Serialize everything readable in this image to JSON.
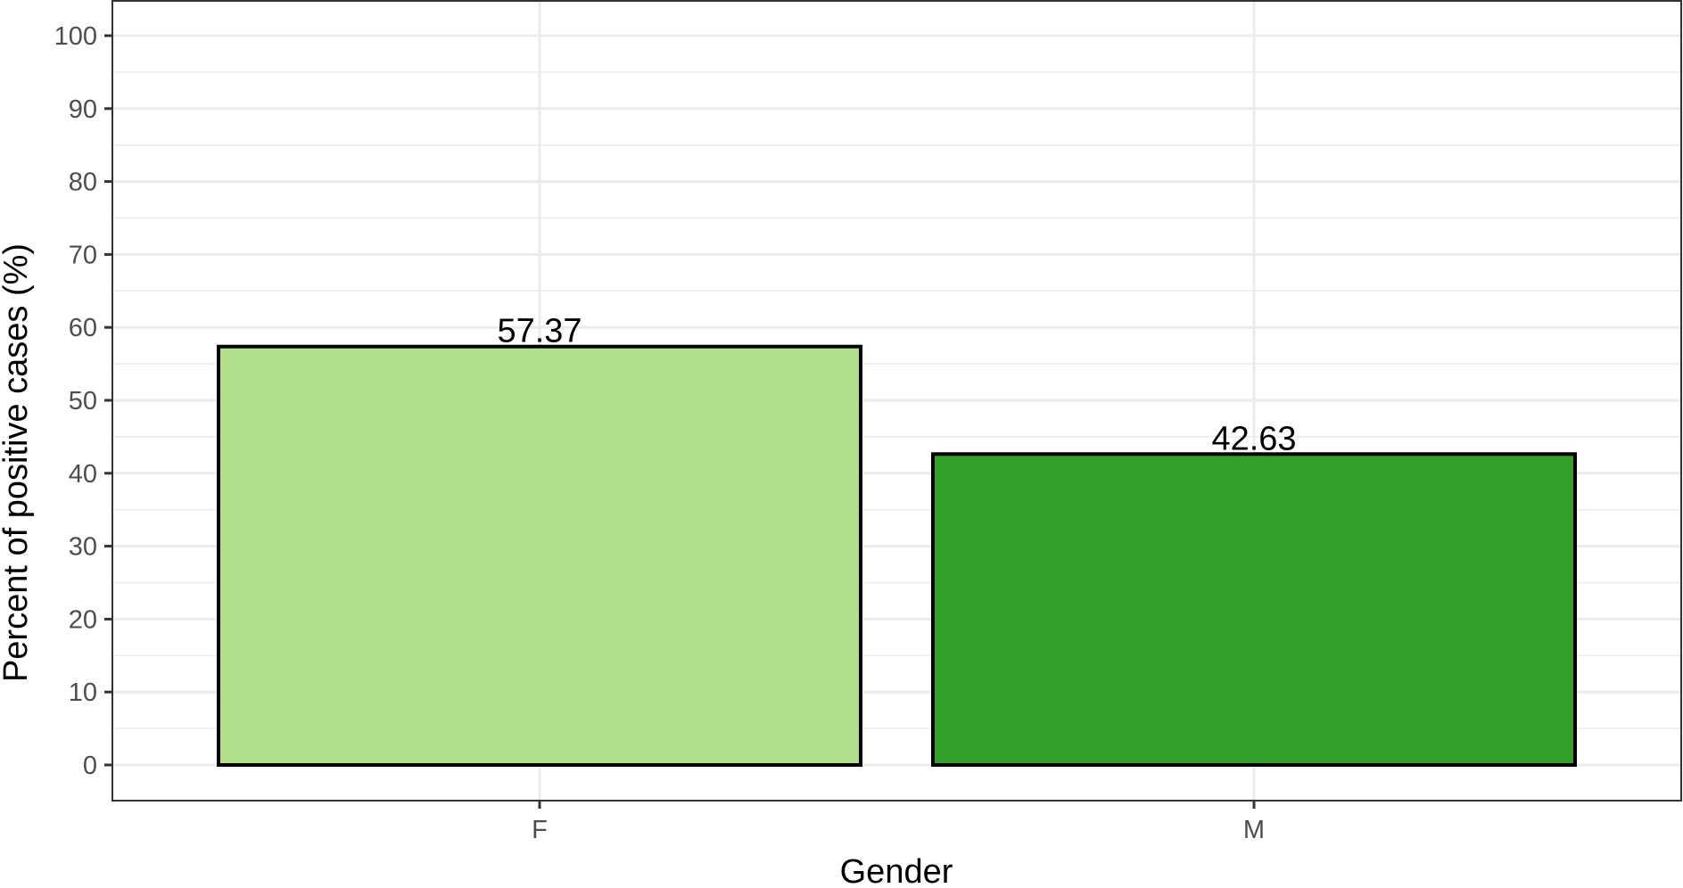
{
  "chart_data": {
    "type": "bar",
    "categories": [
      "F",
      "M"
    ],
    "values": [
      57.37,
      42.63
    ],
    "data_labels": [
      "57.37",
      "42.63"
    ],
    "xlabel": "Gender",
    "ylabel": "Percent of positive cases (%)",
    "ylim": [
      0,
      100
    ],
    "yticks": [
      0,
      10,
      20,
      30,
      40,
      50,
      60,
      70,
      80,
      90,
      100
    ],
    "grid": true,
    "legend": "none",
    "bar_colors": [
      "#b2df8a",
      "#33a02c"
    ],
    "bar_outline": "#000000"
  }
}
